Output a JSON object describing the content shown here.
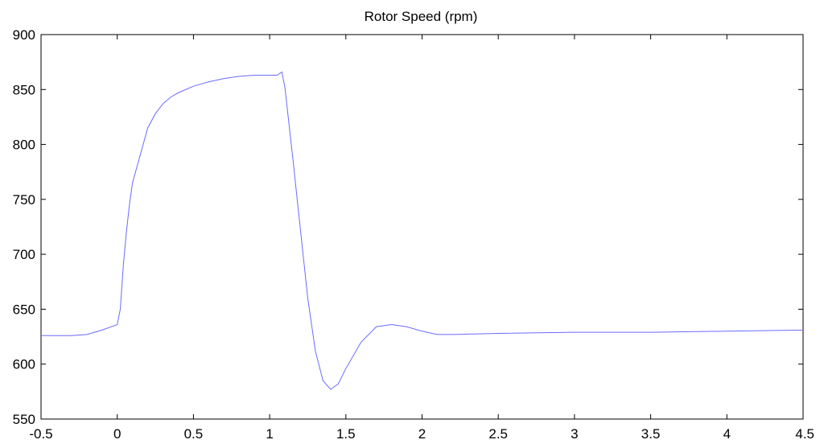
{
  "chart_data": {
    "type": "line",
    "title": "Rotor Speed (rpm)",
    "xlabel": "",
    "ylabel": "",
    "xlim": [
      -0.5,
      4.5
    ],
    "ylim": [
      550,
      900
    ],
    "x_ticks": [
      -0.5,
      0,
      0.5,
      1,
      1.5,
      2,
      2.5,
      3,
      3.5,
      4,
      4.5
    ],
    "x_tick_labels": [
      "-0.5",
      "0",
      "0.5",
      "1",
      "1.5",
      "2",
      "2.5",
      "3",
      "3.5",
      "4",
      "4.5"
    ],
    "y_ticks": [
      550,
      600,
      650,
      700,
      750,
      800,
      850,
      900
    ],
    "y_tick_labels": [
      "550",
      "600",
      "650",
      "700",
      "750",
      "800",
      "850",
      "900"
    ],
    "grid": false,
    "series_color": "#6b6bff",
    "series": [
      {
        "x": [
          -0.5,
          -0.3,
          -0.2,
          -0.1,
          0.0,
          0.02,
          0.04,
          0.06,
          0.08,
          0.1,
          0.15,
          0.2,
          0.25,
          0.3,
          0.35,
          0.4,
          0.5,
          0.6,
          0.7,
          0.8,
          0.9,
          1.0,
          1.05,
          1.08,
          1.1,
          1.15,
          1.2,
          1.25,
          1.3,
          1.35,
          1.4,
          1.45,
          1.5,
          1.6,
          1.7,
          1.8,
          1.9,
          2.0,
          2.1,
          2.2,
          2.5,
          3.0,
          3.5,
          4.0,
          4.5
        ],
        "y": [
          626,
          626,
          627,
          631,
          636,
          650,
          690,
          720,
          745,
          765,
          790,
          815,
          828,
          837,
          843,
          847,
          853,
          857,
          860,
          862,
          863,
          863,
          863,
          866,
          852,
          790,
          725,
          660,
          612,
          585,
          577,
          582,
          596,
          620,
          634,
          636,
          634,
          630,
          627,
          627,
          628,
          629,
          629,
          630,
          631
        ]
      }
    ]
  }
}
